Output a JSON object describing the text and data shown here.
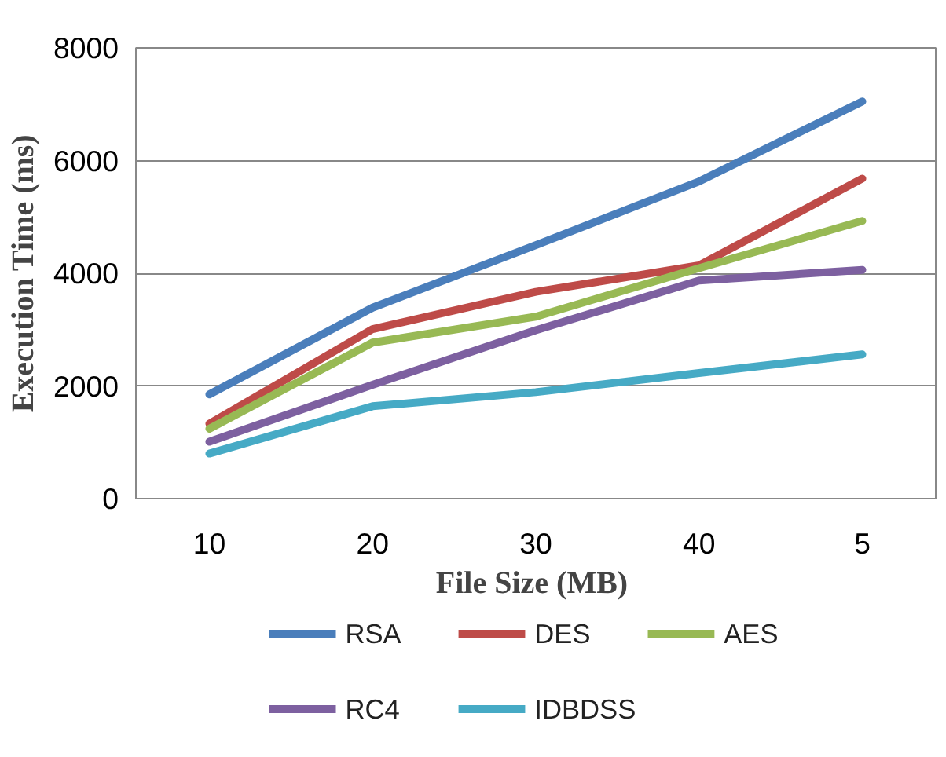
{
  "chart_data": {
    "type": "line",
    "xlabel": "File Size  (MB)",
    "ylabel": "Execution Time (ms)",
    "categories": [
      "10",
      "20",
      "30",
      "40",
      "5"
    ],
    "ylim": [
      0,
      8000
    ],
    "yticks": [
      0,
      2000,
      4000,
      6000,
      8000
    ],
    "grid": "y",
    "legend": "bottom",
    "marker": "none",
    "line_style": "solid",
    "series": [
      {
        "name": "RSA",
        "color": "#4a7ebb",
        "values": [
          1850,
          3390,
          4500,
          5630,
          7050
        ]
      },
      {
        "name": "DES",
        "color": "#be4b48",
        "values": [
          1330,
          3010,
          3670,
          4140,
          5680
        ]
      },
      {
        "name": "AES",
        "color": "#98b954",
        "values": [
          1240,
          2770,
          3230,
          4090,
          4930
        ]
      },
      {
        "name": "RC4",
        "color": "#7d60a0",
        "values": [
          1010,
          2020,
          2990,
          3870,
          4060
        ]
      },
      {
        "name": "IDBDSS",
        "color": "#46aac5",
        "values": [
          800,
          1640,
          1890,
          2230,
          2560
        ]
      }
    ]
  }
}
